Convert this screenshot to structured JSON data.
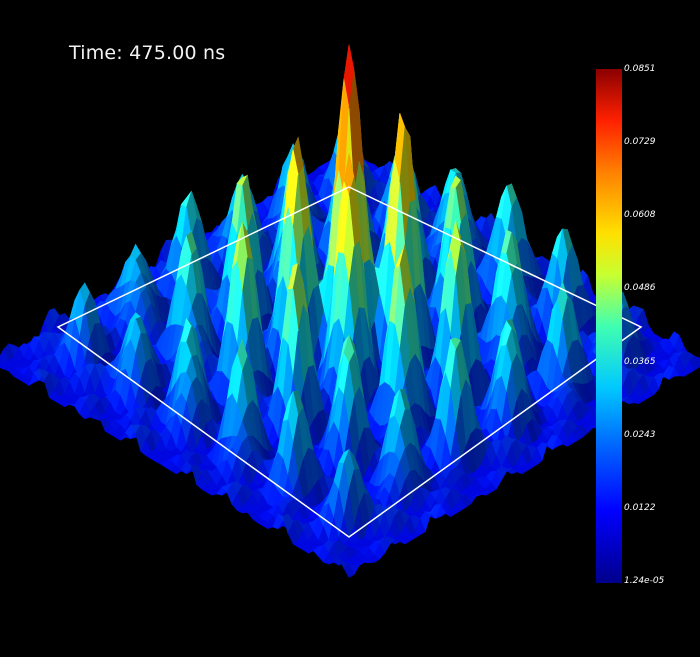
{
  "time_label": "Time: 475.00 ns",
  "colorbar": {
    "labels": [
      "0.0851",
      "0.0729",
      "0.0608",
      "0.0486",
      "0.0365",
      "0.0243",
      "0.0122",
      "1.24e-05"
    ],
    "colors": [
      "#00008b",
      "#0000ff",
      "#0060ff",
      "#00c8ff",
      "#40ffb0",
      "#c8ff30",
      "#ffe000",
      "#ff8000",
      "#ff2000",
      "#8b0000"
    ]
  },
  "colors": {
    "background": "#000000",
    "frame": "#ffffff"
  }
}
